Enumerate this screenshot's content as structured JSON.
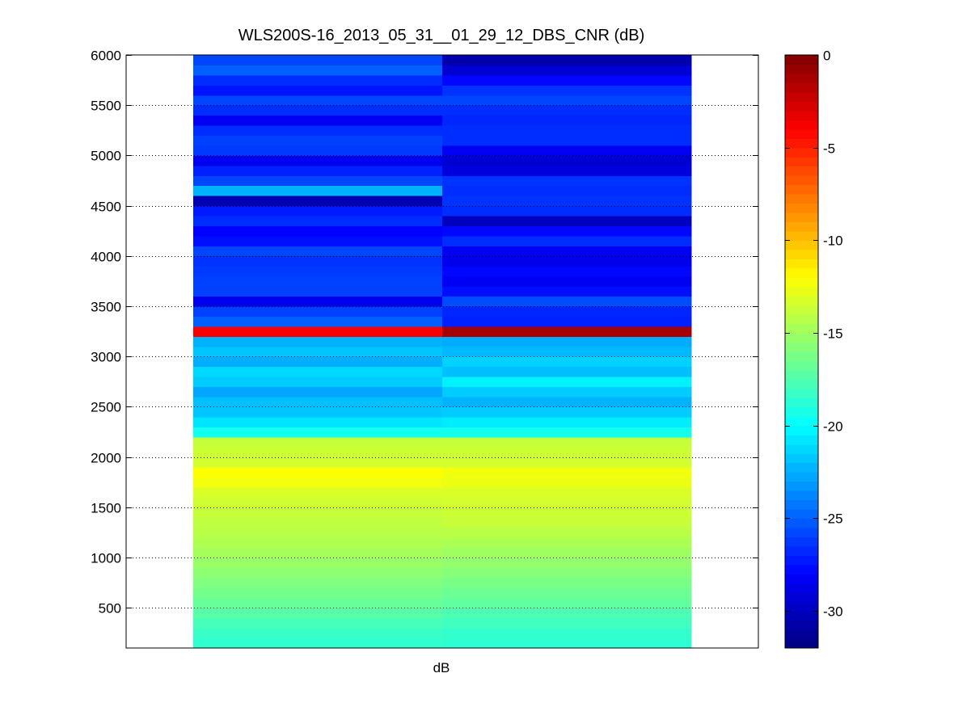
{
  "chart_data": {
    "type": "heatmap",
    "title": "WLS200S-16_2013_05_31__01_29_12_DBS_CNR (dB)",
    "xlabel": "dB",
    "ylabel": "",
    "ylim": [
      100,
      6000
    ],
    "y_ticks": [
      500,
      1000,
      1500,
      2000,
      2500,
      3000,
      3500,
      4000,
      4500,
      5000,
      5500,
      6000
    ],
    "grid": "y-dotted",
    "colormap": "jet",
    "clim": [
      -32,
      0
    ],
    "colorbar_ticks": [
      0,
      -5,
      -10,
      -15,
      -20,
      -25,
      -30
    ],
    "y_bins": [
      100,
      200,
      300,
      400,
      500,
      600,
      700,
      800,
      900,
      1000,
      1100,
      1200,
      1300,
      1400,
      1500,
      1600,
      1700,
      1800,
      1900,
      2000,
      2100,
      2200,
      2300,
      2400,
      2500,
      2600,
      2700,
      2800,
      2900,
      3000,
      3100,
      3200,
      3300,
      3400,
      3500,
      3600,
      3700,
      3800,
      3900,
      4000,
      4100,
      4200,
      4300,
      4400,
      4500,
      4600,
      4700,
      4800,
      4900,
      5000,
      5100,
      5200,
      5300,
      5400,
      5500,
      5600,
      5700,
      5800,
      5900,
      6000
    ],
    "columns": [
      {
        "values": [
          -18.5,
          -18.2,
          -17.8,
          -17.2,
          -16.8,
          -16.4,
          -16.0,
          -15.6,
          -15.2,
          -14.8,
          -14.5,
          -14.2,
          -14.0,
          -13.8,
          -13.5,
          -13.2,
          -12.4,
          -12.0,
          -13.4,
          -13.6,
          -13.8,
          -19.5,
          -20.8,
          -21.8,
          -22.0,
          -22.8,
          -21.6,
          -21.2,
          -22.6,
          -21.8,
          -22.4,
          -3.8,
          -25.0,
          -26.0,
          -28.5,
          -26.0,
          -26.0,
          -26.2,
          -26.4,
          -25.8,
          -27.6,
          -28.0,
          -26.6,
          -27.2,
          -30.4,
          -22.4,
          -25.8,
          -27.0,
          -28.5,
          -26.2,
          -26.0,
          -26.6,
          -28.4,
          -26.6,
          -25.8,
          -27.4,
          -26.6,
          -25.0,
          -25.8,
          -26.2
        ]
      },
      {
        "values": [
          -18.6,
          -18.4,
          -18.0,
          -17.6,
          -17.0,
          -16.6,
          -16.2,
          -15.8,
          -15.4,
          -15.0,
          -14.6,
          -14.2,
          -13.8,
          -13.6,
          -13.4,
          -13.2,
          -12.6,
          -12.4,
          -13.4,
          -13.6,
          -13.8,
          -19.4,
          -20.6,
          -21.6,
          -22.4,
          -21.6,
          -20.4,
          -22.0,
          -21.4,
          -22.2,
          -22.6,
          -1.2,
          -27.0,
          -26.8,
          -25.6,
          -27.6,
          -28.4,
          -27.8,
          -28.6,
          -28.4,
          -26.6,
          -27.8,
          -30.0,
          -26.6,
          -26.4,
          -26.6,
          -26.4,
          -29.0,
          -29.4,
          -28.4,
          -26.6,
          -26.6,
          -26.8,
          -26.6,
          -25.8,
          -26.4,
          -27.8,
          -29.4,
          -30.6,
          -24.8
        ]
      }
    ]
  }
}
